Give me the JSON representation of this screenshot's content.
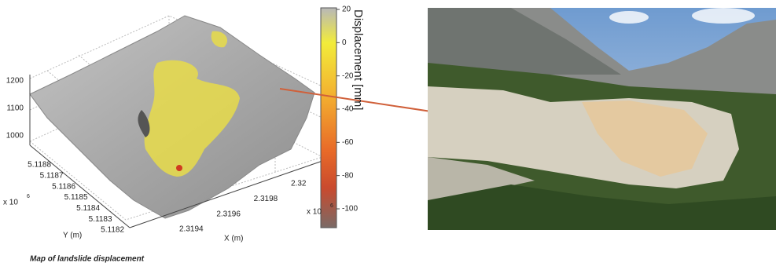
{
  "figure": {
    "caption": "Map of landslide displacement",
    "colorbar": {
      "label": "Displacement [mm]",
      "ticks": [
        "20",
        "0",
        "-20",
        "-40",
        "-60",
        "-80",
        "-100"
      ]
    },
    "z_axis": {
      "ticks": [
        "1200",
        "1100",
        "1000"
      ]
    },
    "y_axis": {
      "label": "Y (m)",
      "ticks": [
        "5.1188",
        "5.1187",
        "5.1186",
        "5.1185",
        "5.1184",
        "5.1183",
        "5.1182"
      ],
      "multiplier": "x 10",
      "exponent": "6"
    },
    "x_axis": {
      "label": "X (m)",
      "ticks": [
        "2.3194",
        "2.3196",
        "2.3198",
        "2.32"
      ],
      "multiplier": "x 10",
      "exponent": "6"
    }
  }
}
